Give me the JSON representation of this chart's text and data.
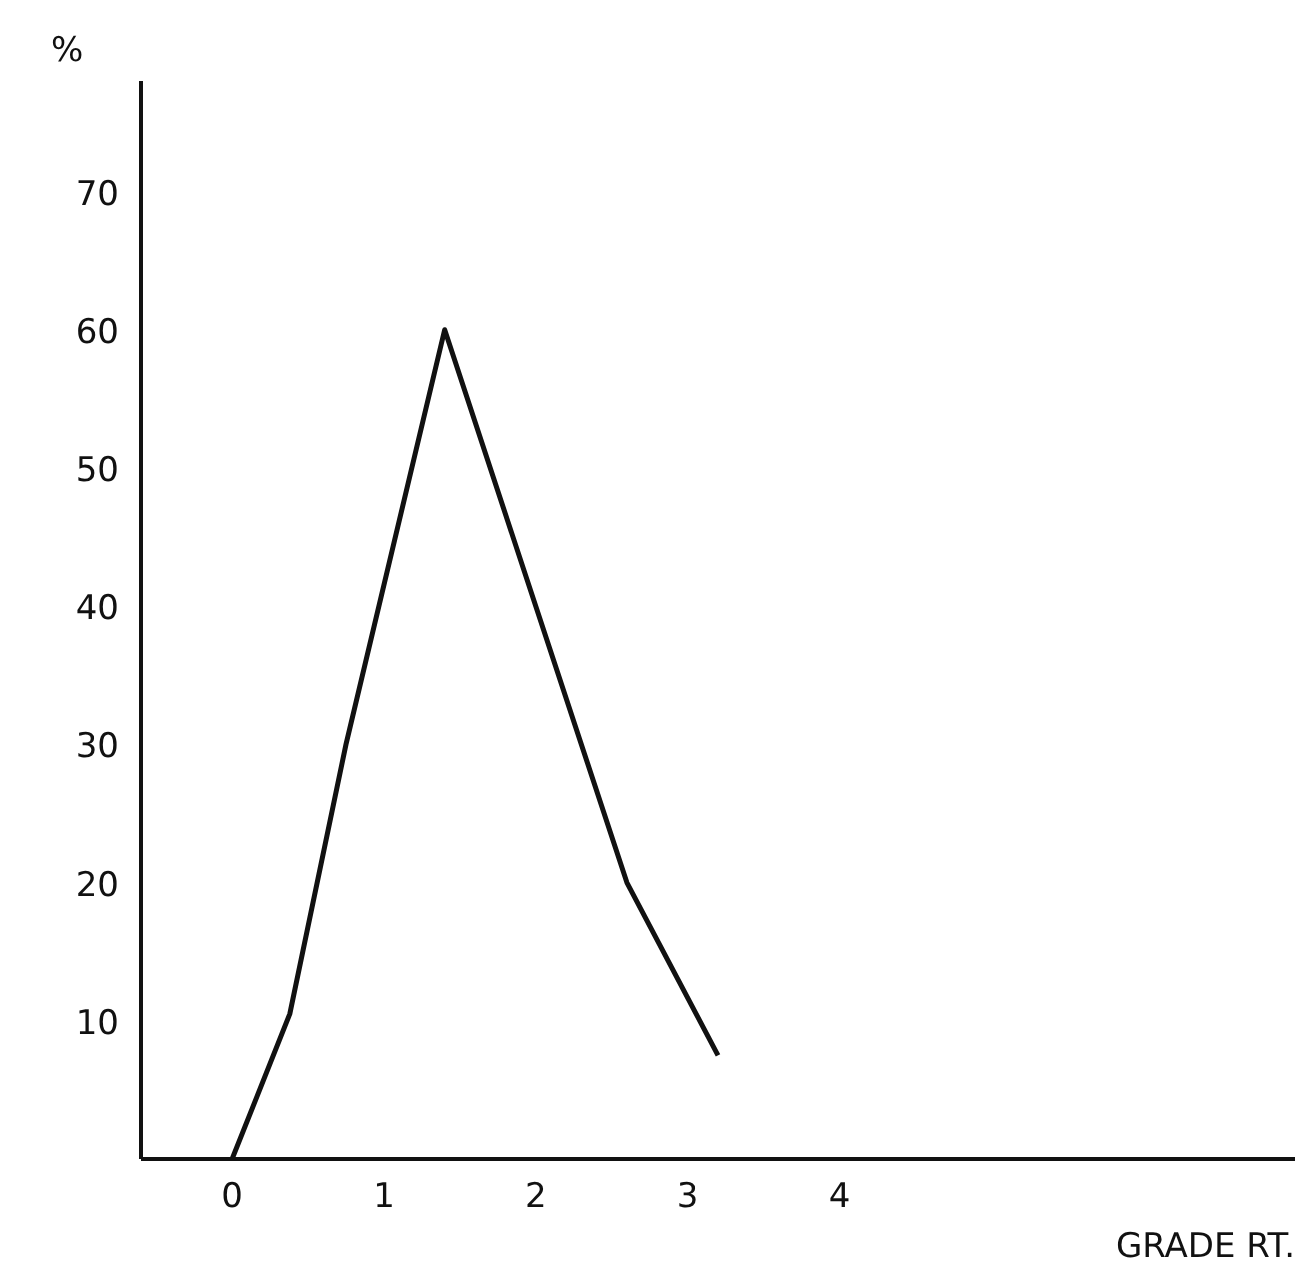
{
  "chart_data": {
    "type": "line",
    "ylabel": "%",
    "xlabel": "GRADE RT.",
    "color": "#111111",
    "x": [
      0,
      0.38,
      0.75,
      1.4,
      2.0,
      2.6,
      3.2
    ],
    "values": [
      0,
      10.5,
      30,
      60,
      40,
      20,
      7.5
    ],
    "xlim": [
      -0.6,
      7.0
    ],
    "ylim": [
      0,
      78
    ],
    "xticks": [
      0,
      1,
      2,
      3,
      4
    ],
    "yticks": [
      10,
      20,
      30,
      40,
      50,
      60,
      70
    ],
    "grid": false,
    "marker": "none",
    "line_style": "solid"
  }
}
